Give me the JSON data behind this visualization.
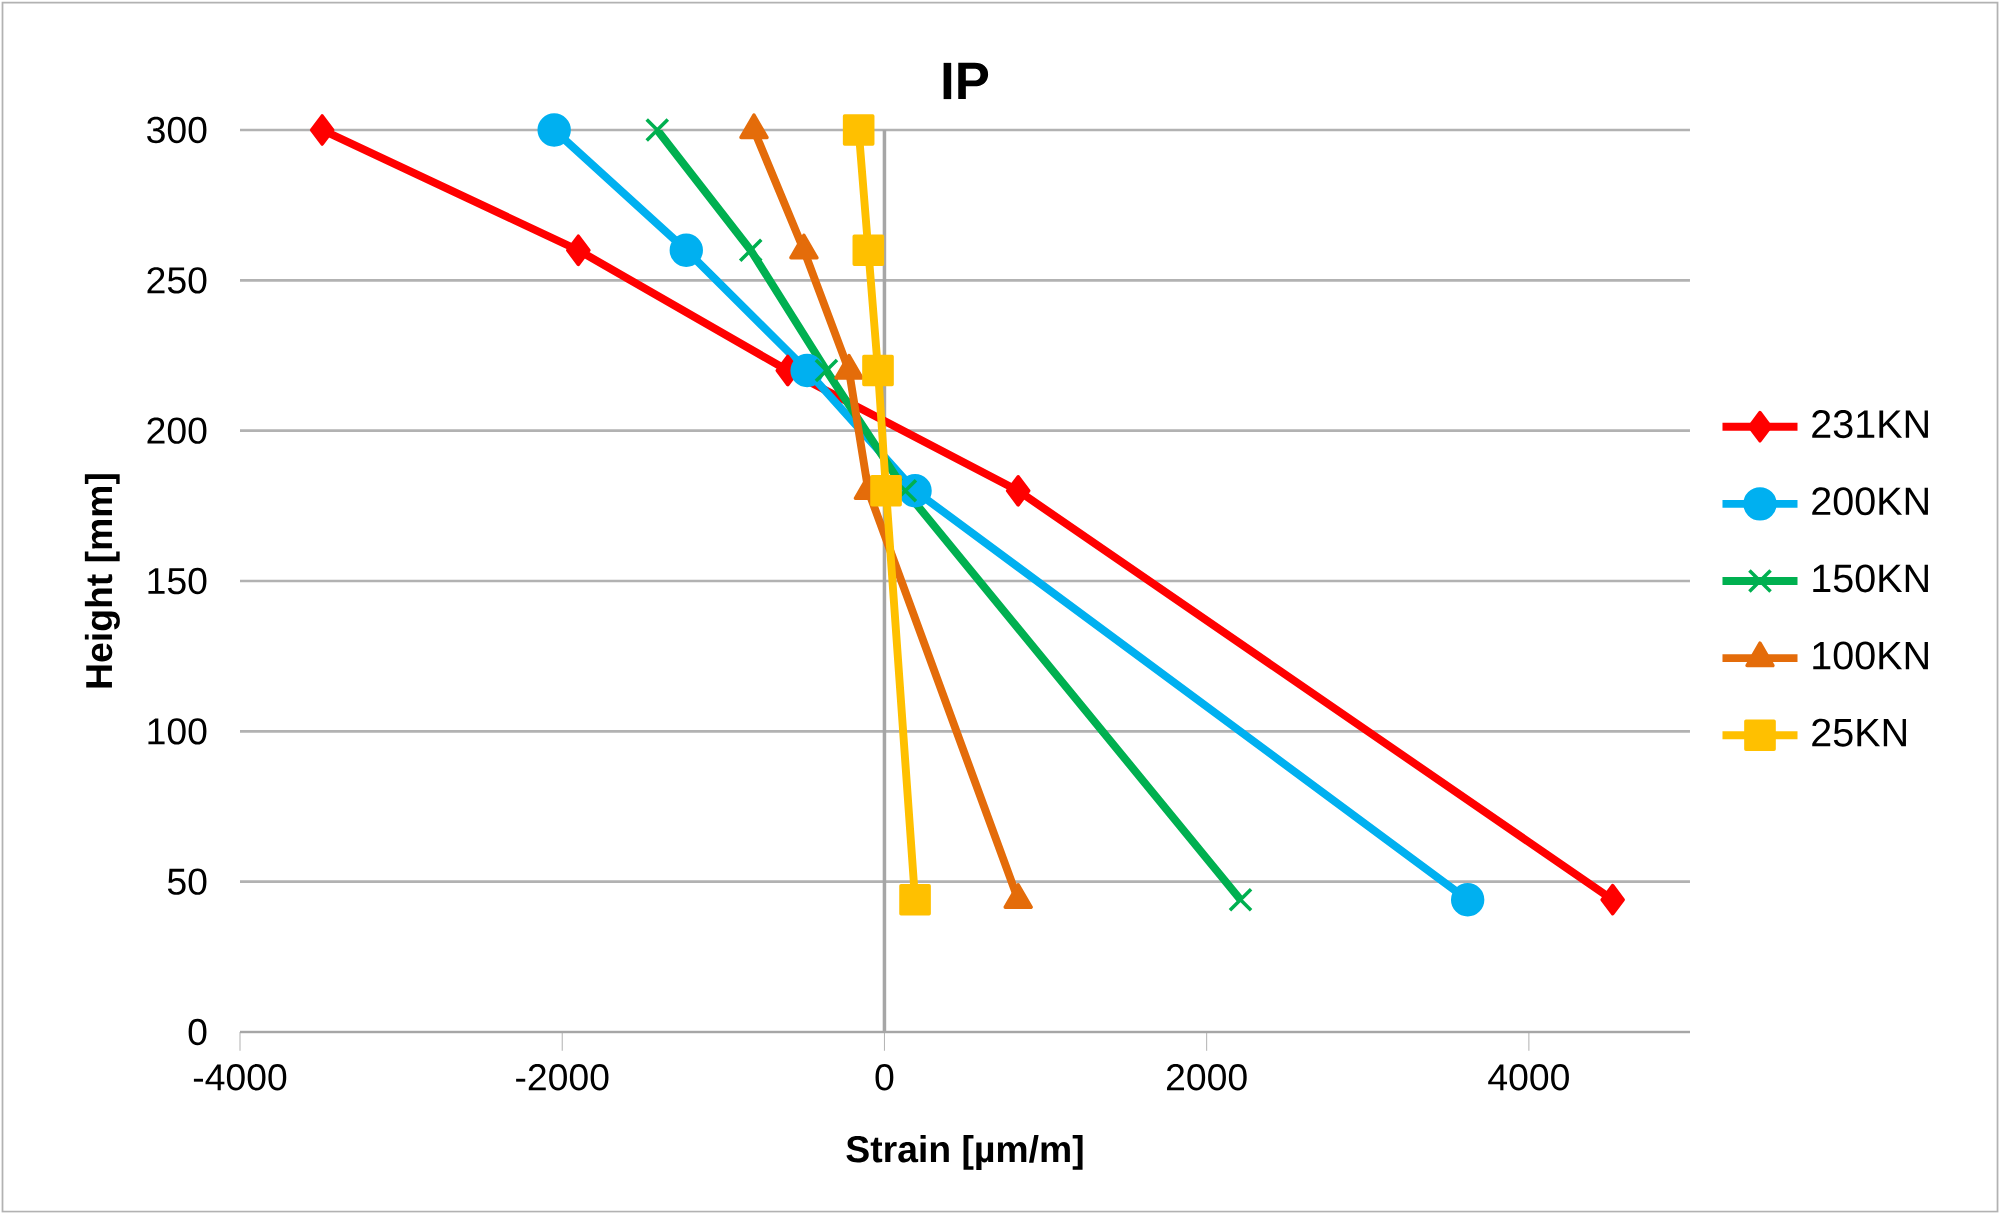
{
  "chart_data": {
    "type": "line",
    "title": "IP",
    "xlabel": "Strain [µm/m]",
    "ylabel": "Height [mm]",
    "xlim": [
      -4000,
      5000
    ],
    "xticks": [
      -4000,
      -2000,
      0,
      2000,
      4000
    ],
    "ylim": [
      0,
      300
    ],
    "yticks": [
      0,
      50,
      100,
      150,
      200,
      250,
      300
    ],
    "grid": "y",
    "legend": "right",
    "line_style": "solid",
    "series": [
      {
        "name": "231KN",
        "color": "#ff0000",
        "marker": "diamond",
        "x": [
          -3490,
          -1900,
          -600,
          830,
          4520
        ],
        "values": [
          300,
          260,
          220,
          180,
          44
        ]
      },
      {
        "name": "200KN",
        "color": "#00b0f0",
        "marker": "circle",
        "x": [
          -2050,
          -1230,
          -480,
          190,
          3620
        ],
        "values": [
          300,
          260,
          220,
          180,
          44
        ]
      },
      {
        "name": "150KN",
        "color": "#00b050",
        "marker": "cross",
        "x": [
          -1410,
          -830,
          -360,
          130,
          2210
        ],
        "values": [
          300,
          260,
          220,
          180,
          44
        ]
      },
      {
        "name": "100KN",
        "color": "#e46c0a",
        "marker": "triangle",
        "x": [
          -810,
          -500,
          -220,
          -100,
          830
        ],
        "values": [
          300,
          260,
          220,
          180,
          44
        ]
      },
      {
        "name": "25KN",
        "color": "#ffc000",
        "marker": "square",
        "x": [
          -160,
          -100,
          -40,
          10,
          190
        ],
        "values": [
          300,
          260,
          220,
          180,
          44
        ]
      }
    ]
  }
}
